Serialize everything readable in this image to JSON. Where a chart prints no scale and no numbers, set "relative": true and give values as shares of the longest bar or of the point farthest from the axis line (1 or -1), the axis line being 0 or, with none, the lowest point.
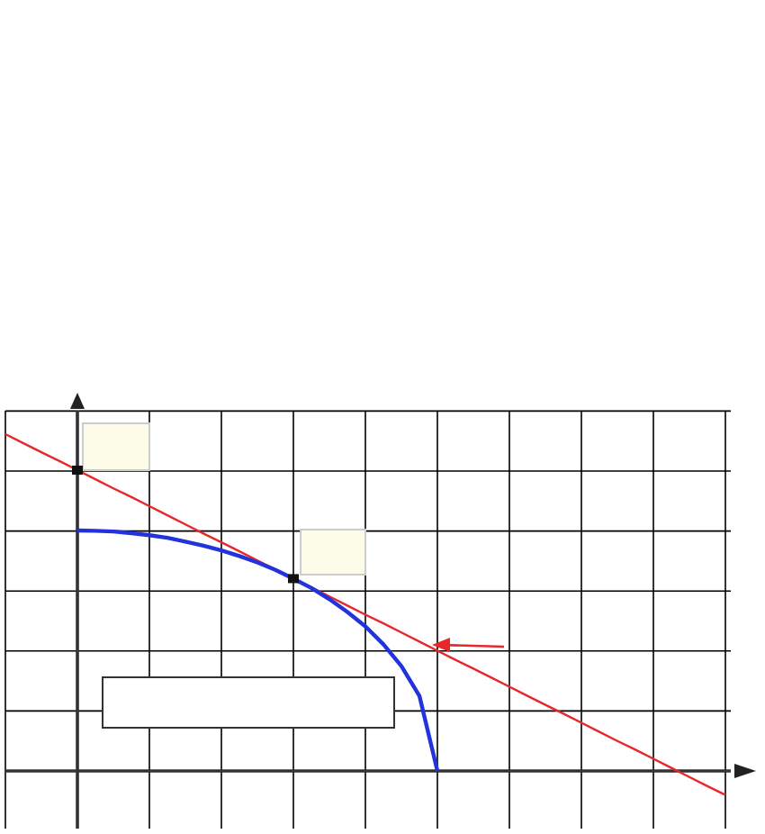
{
  "chart_data": {
    "type": "line",
    "relative": true,
    "grid": true,
    "marker": "none",
    "categories": [
      null,
      null,
      null,
      null,
      null,
      null,
      null,
      null,
      null,
      null,
      null,
      null,
      null,
      null,
      null,
      null,
      null,
      null,
      null,
      null,
      null,
      null,
      null,
      null,
      null,
      null,
      null,
      null,
      null,
      null,
      null,
      null,
      null,
      null,
      null,
      null,
      null,
      null,
      null,
      null,
      null
    ],
    "series": [
      {
        "color": "#e8272b",
        "values": [
          1.0,
          0.973,
          0.946,
          0.92,
          0.893,
          0.866,
          0.839,
          0.813,
          0.786,
          0.759,
          0.732,
          0.705,
          0.679,
          0.652,
          0.625,
          0.598,
          0.571,
          0.545,
          0.518,
          0.491,
          0.464,
          0.438,
          0.411,
          0.384,
          0.357,
          0.33,
          0.304,
          0.277,
          0.25,
          0.223,
          0.196,
          0.17,
          0.143,
          0.116,
          0.089,
          0.063,
          0.036,
          0.009,
          -0.018,
          -0.045,
          -0.071
        ]
      },
      {
        "color": "#2233dd",
        "values": [
          null,
          null,
          null,
          null,
          0.714,
          0.713,
          0.711,
          0.706,
          0.7,
          0.692,
          0.681,
          0.669,
          0.655,
          0.638,
          0.619,
          0.597,
          0.571,
          0.543,
          0.51,
          0.472,
          0.429,
          0.376,
          0.311,
          0.223,
          0,
          null,
          null,
          null,
          null,
          null,
          null,
          null,
          null,
          null,
          null,
          null,
          null,
          null,
          null,
          null,
          null
        ]
      }
    ]
  }
}
